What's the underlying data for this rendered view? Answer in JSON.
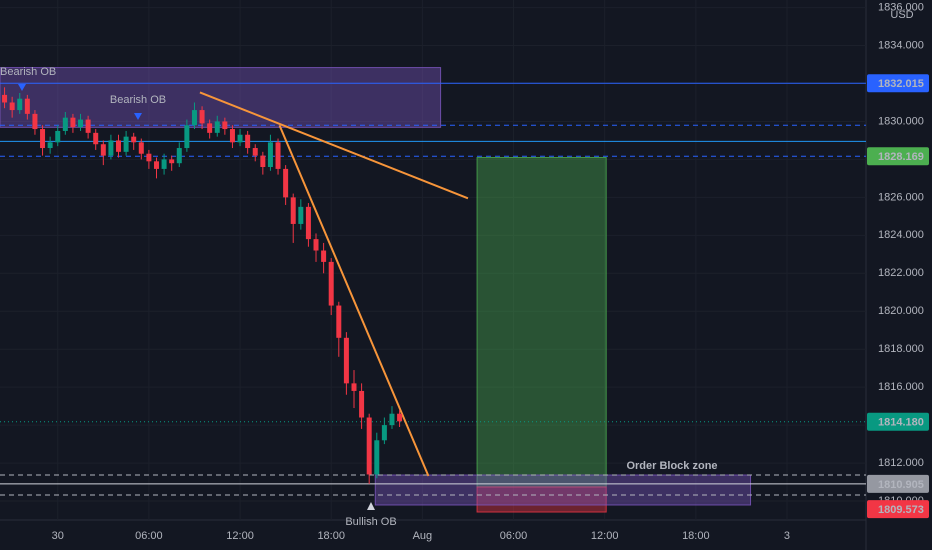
{
  "chart_data": {
    "type": "candlestick",
    "currency": "USD",
    "up_color": "#089981",
    "down_color": "#f23645",
    "xlim": [
      -3.8,
      53.2
    ],
    "ylim": [
      1809,
      1836.4
    ],
    "xticks": [
      {
        "value": 0,
        "label": "30"
      },
      {
        "value": 6,
        "label": "06:00"
      },
      {
        "value": 12,
        "label": "12:00"
      },
      {
        "value": 18,
        "label": "18:00"
      },
      {
        "value": 24,
        "label": "Aug"
      },
      {
        "value": 30,
        "label": "06:00"
      },
      {
        "value": 36,
        "label": "12:00"
      },
      {
        "value": 42,
        "label": "18:00"
      },
      {
        "value": 48,
        "label": "3"
      }
    ],
    "yticks": [
      {
        "value": 1810,
        "label": "1810.000"
      },
      {
        "value": 1812,
        "label": "1812.000"
      },
      {
        "value": 1814,
        "label": "1814.000"
      },
      {
        "value": 1816,
        "label": "1816.000"
      },
      {
        "value": 1818,
        "label": "1818.000"
      },
      {
        "value": 1820,
        "label": "1820.000"
      },
      {
        "value": 1822,
        "label": "1822.000"
      },
      {
        "value": 1824,
        "label": "1824.000"
      },
      {
        "value": 1826,
        "label": "1826.000"
      },
      {
        "value": 1828,
        "label": "1828.000"
      },
      {
        "value": 1830,
        "label": "1830.000"
      },
      {
        "value": 1832,
        "label": "1832.000"
      },
      {
        "value": 1834,
        "label": "1834.000"
      },
      {
        "value": 1836,
        "label": "1836.000"
      }
    ],
    "x": [
      -3.5,
      -3,
      -2.5,
      -2,
      -1.5,
      -1,
      -0.5,
      0,
      0.5,
      1,
      1.5,
      2,
      2.5,
      3,
      3.5,
      4,
      4.5,
      5,
      5.5,
      6,
      6.5,
      7,
      7.5,
      8,
      8.5,
      9,
      9.5,
      10,
      10.5,
      11,
      11.5,
      12,
      12.5,
      13,
      13.5,
      14,
      14.5,
      15,
      15.5,
      16,
      16.5,
      17,
      17.5,
      18,
      18.5,
      19,
      19.5,
      20,
      20.5,
      21,
      21.5,
      22,
      22.5
    ],
    "open": [
      1831.4,
      1831.0,
      1830.6,
      1831.2,
      1830.4,
      1829.6,
      1828.6,
      1828.9,
      1829.5,
      1830.2,
      1829.7,
      1830.1,
      1829.4,
      1828.8,
      1828.2,
      1829.0,
      1828.4,
      1829.2,
      1828.9,
      1828.3,
      1827.9,
      1827.5,
      1828.0,
      1827.8,
      1828.6,
      1829.8,
      1830.6,
      1829.9,
      1829.4,
      1830.0,
      1829.6,
      1828.9,
      1829.3,
      1828.6,
      1828.2,
      1827.6,
      1828.9,
      1827.5,
      1826.0,
      1824.6,
      1825.5,
      1823.8,
      1823.2,
      1822.6,
      1820.3,
      1818.6,
      1816.2,
      1815.8,
      1814.4,
      1811.4,
      1813.2,
      1814.0,
      1814.6
    ],
    "high": [
      1831.8,
      1831.3,
      1831.5,
      1831.4,
      1830.6,
      1829.8,
      1829.2,
      1829.8,
      1830.5,
      1830.4,
      1830.4,
      1830.3,
      1829.6,
      1829.0,
      1829.3,
      1829.3,
      1829.5,
      1829.4,
      1829.1,
      1828.5,
      1828.1,
      1828.3,
      1828.2,
      1828.9,
      1830.1,
      1831.0,
      1830.8,
      1830.1,
      1830.3,
      1830.2,
      1829.8,
      1829.6,
      1829.5,
      1828.8,
      1828.4,
      1829.3,
      1829.1,
      1827.7,
      1826.2,
      1825.9,
      1825.7,
      1824.1,
      1823.6,
      1822.8,
      1820.5,
      1818.9,
      1816.9,
      1816.2,
      1814.6,
      1813.6,
      1814.4,
      1815.0,
      1814.8
    ],
    "low": [
      1830.7,
      1830.2,
      1830.4,
      1830.1,
      1829.3,
      1828.2,
      1828.3,
      1828.7,
      1829.3,
      1829.4,
      1829.5,
      1829.1,
      1828.5,
      1827.7,
      1828.0,
      1828.1,
      1828.2,
      1828.5,
      1828.0,
      1827.5,
      1827.0,
      1827.2,
      1827.4,
      1827.6,
      1828.4,
      1829.6,
      1829.6,
      1829.1,
      1829.2,
      1829.3,
      1828.6,
      1828.7,
      1828.3,
      1827.9,
      1827.2,
      1827.4,
      1827.2,
      1825.6,
      1823.6,
      1824.3,
      1823.4,
      1822.6,
      1822.0,
      1819.8,
      1817.6,
      1815.6,
      1814.9,
      1813.8,
      1810.9,
      1811.2,
      1813.0,
      1813.8,
      1813.9
    ],
    "close": [
      1831.0,
      1830.6,
      1831.2,
      1830.4,
      1829.6,
      1828.6,
      1828.9,
      1829.5,
      1830.2,
      1829.7,
      1830.1,
      1829.4,
      1828.8,
      1828.2,
      1829.0,
      1828.4,
      1829.2,
      1828.9,
      1828.3,
      1827.9,
      1827.5,
      1828.0,
      1827.8,
      1828.6,
      1829.8,
      1830.6,
      1829.9,
      1829.4,
      1830.0,
      1829.6,
      1828.9,
      1829.3,
      1828.6,
      1828.2,
      1827.6,
      1828.9,
      1827.5,
      1826.0,
      1824.6,
      1825.5,
      1823.8,
      1823.2,
      1822.6,
      1820.3,
      1818.6,
      1816.2,
      1815.8,
      1814.4,
      1811.4,
      1813.2,
      1814.0,
      1814.6,
      1814.2
    ],
    "zones": [
      {
        "from": -3.8,
        "to": 25.2,
        "top": 1832.84,
        "bottom": 1829.69,
        "color": "#7e57c2"
      },
      {
        "from": 27.6,
        "to": 36.1,
        "top": 1828.1,
        "bottom": 1810.74,
        "color": "#4caf50"
      },
      {
        "from": 27.6,
        "to": 36.1,
        "top": 1810.74,
        "bottom": 1809.42,
        "color": "#f23645"
      },
      {
        "from": 20.9,
        "to": 45.6,
        "top": 1811.37,
        "bottom": 1809.79,
        "color": "#7e57c2"
      }
    ],
    "trendlines": [
      {
        "x": [
          9.36,
          27.0
        ],
        "y": [
          1831.53,
          1825.95
        ],
        "color": "#f7953a"
      },
      {
        "x": [
          14.6,
          24.4
        ],
        "y": [
          1829.79,
          1811.32
        ],
        "color": "#f7953a"
      }
    ],
    "levels": [
      {
        "value": 1832.015,
        "label": "1832.015",
        "color": "#2962ff",
        "style": "solid"
      },
      {
        "value": 1829.8,
        "color": "#2962ff",
        "style": "dashed"
      },
      {
        "value": 1828.95,
        "color": "#2196f3",
        "style": "solid"
      },
      {
        "value": 1828.169,
        "label": "1828.169",
        "color": "#2962ff",
        "style": "dashed",
        "label_color": "#4caf50"
      },
      {
        "value": 1814.18,
        "label": "1814.180",
        "color": "#089981",
        "style": "dotted"
      },
      {
        "value": 1811.37,
        "color": "#b2b5be",
        "style": "dashed"
      },
      {
        "value": 1810.905,
        "label": "1810.905",
        "color": "#d1d4dc",
        "style": "solid",
        "label_color": "#9598a1"
      },
      {
        "value": 1810.32,
        "color": "#b2b5be",
        "style": "dashed"
      },
      {
        "value": 1809.573,
        "label": "1809.573",
        "color": "#f23645",
        "style": "none"
      }
    ],
    "annotations": [
      "Bearish OB",
      "Bearish OB",
      "Bullish OB",
      "Order Block zone"
    ]
  }
}
